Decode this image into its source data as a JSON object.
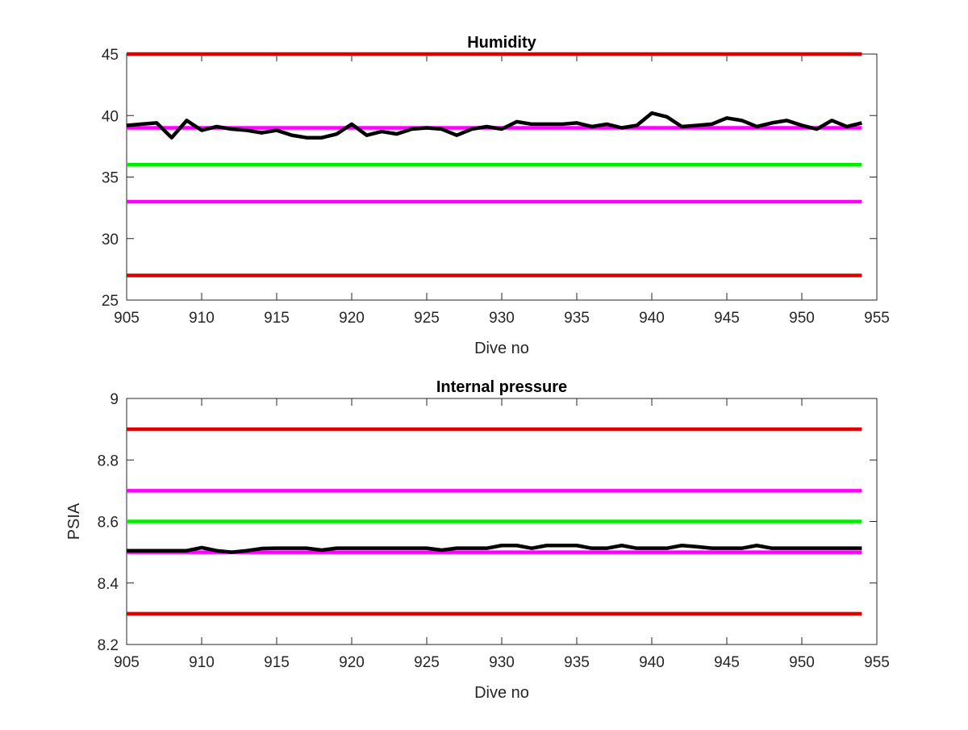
{
  "chart_data": [
    {
      "type": "line",
      "title": "Humidity",
      "xlabel": "Dive no",
      "ylabel": "",
      "xlim": [
        905,
        955
      ],
      "ylim": [
        25,
        45
      ],
      "xticks": [
        905,
        910,
        915,
        920,
        925,
        930,
        935,
        940,
        945,
        950,
        955
      ],
      "yticks": [
        25,
        30,
        35,
        40,
        45
      ],
      "grid": false,
      "series": [
        {
          "color": "#000000",
          "x": [
            905,
            906,
            907,
            908,
            909,
            910,
            911,
            912,
            913,
            914,
            915,
            916,
            917,
            918,
            919,
            920,
            921,
            922,
            923,
            924,
            925,
            926,
            927,
            928,
            929,
            930,
            931,
            932,
            933,
            934,
            935,
            936,
            937,
            938,
            939,
            940,
            941,
            942,
            943,
            944,
            945,
            946,
            947,
            948,
            949,
            950,
            951,
            952,
            953,
            954
          ],
          "y": [
            39.2,
            39.3,
            39.4,
            38.2,
            39.6,
            38.8,
            39.1,
            38.9,
            38.8,
            38.6,
            38.8,
            38.4,
            38.2,
            38.2,
            38.5,
            39.3,
            38.4,
            38.7,
            38.5,
            38.9,
            39.0,
            38.9,
            38.4,
            38.9,
            39.1,
            38.9,
            39.5,
            39.3,
            39.3,
            39.3,
            39.4,
            39.1,
            39.3,
            39.0,
            39.2,
            40.2,
            39.9,
            39.1,
            39.2,
            39.3,
            39.8,
            39.6,
            39.1,
            39.4,
            39.6,
            39.2,
            38.9,
            39.6,
            39.1,
            39.4
          ]
        },
        {
          "color": "#dd0000",
          "x": [
            905,
            954
          ],
          "y": [
            45,
            45
          ]
        },
        {
          "color": "#dd0000",
          "x": [
            905,
            954
          ],
          "y": [
            27,
            27
          ]
        },
        {
          "color": "#ff00ff",
          "x": [
            905,
            954
          ],
          "y": [
            39,
            39
          ]
        },
        {
          "color": "#ff00ff",
          "x": [
            905,
            954
          ],
          "y": [
            33,
            33
          ]
        },
        {
          "color": "#00ee00",
          "x": [
            905,
            954
          ],
          "y": [
            36,
            36
          ]
        }
      ]
    },
    {
      "type": "line",
      "title": "Internal pressure",
      "xlabel": "Dive no",
      "ylabel": "PSIA",
      "xlim": [
        905,
        955
      ],
      "ylim": [
        8.2,
        9
      ],
      "xticks": [
        905,
        910,
        915,
        920,
        925,
        930,
        935,
        940,
        945,
        950,
        955
      ],
      "yticks": [
        8.2,
        8.4,
        8.6,
        8.8,
        9
      ],
      "grid": false,
      "series": [
        {
          "color": "#000000",
          "x": [
            905,
            906,
            907,
            908,
            909,
            910,
            911,
            912,
            913,
            914,
            915,
            916,
            917,
            918,
            919,
            920,
            921,
            922,
            923,
            924,
            925,
            926,
            927,
            928,
            929,
            930,
            931,
            932,
            933,
            934,
            935,
            936,
            937,
            938,
            939,
            940,
            941,
            942,
            943,
            944,
            945,
            946,
            947,
            948,
            949,
            950,
            951,
            952,
            953,
            954
          ],
          "y": [
            8.505,
            8.505,
            8.505,
            8.505,
            8.505,
            8.515,
            8.505,
            8.5,
            8.505,
            8.512,
            8.513,
            8.513,
            8.513,
            8.507,
            8.513,
            8.513,
            8.513,
            8.513,
            8.513,
            8.513,
            8.513,
            8.507,
            8.513,
            8.513,
            8.513,
            8.522,
            8.522,
            8.513,
            8.522,
            8.522,
            8.522,
            8.513,
            8.513,
            8.522,
            8.513,
            8.513,
            8.513,
            8.522,
            8.518,
            8.513,
            8.513,
            8.513,
            8.522,
            8.513,
            8.513,
            8.513,
            8.513,
            8.513,
            8.513,
            8.513
          ]
        },
        {
          "color": "#dd0000",
          "x": [
            905,
            954
          ],
          "y": [
            8.9,
            8.9
          ]
        },
        {
          "color": "#dd0000",
          "x": [
            905,
            954
          ],
          "y": [
            8.3,
            8.3
          ]
        },
        {
          "color": "#ff00ff",
          "x": [
            905,
            954
          ],
          "y": [
            8.7,
            8.7
          ]
        },
        {
          "color": "#ff00ff",
          "x": [
            905,
            954
          ],
          "y": [
            8.5,
            8.5
          ]
        },
        {
          "color": "#00ee00",
          "x": [
            905,
            954
          ],
          "y": [
            8.6,
            8.6
          ]
        }
      ]
    }
  ]
}
